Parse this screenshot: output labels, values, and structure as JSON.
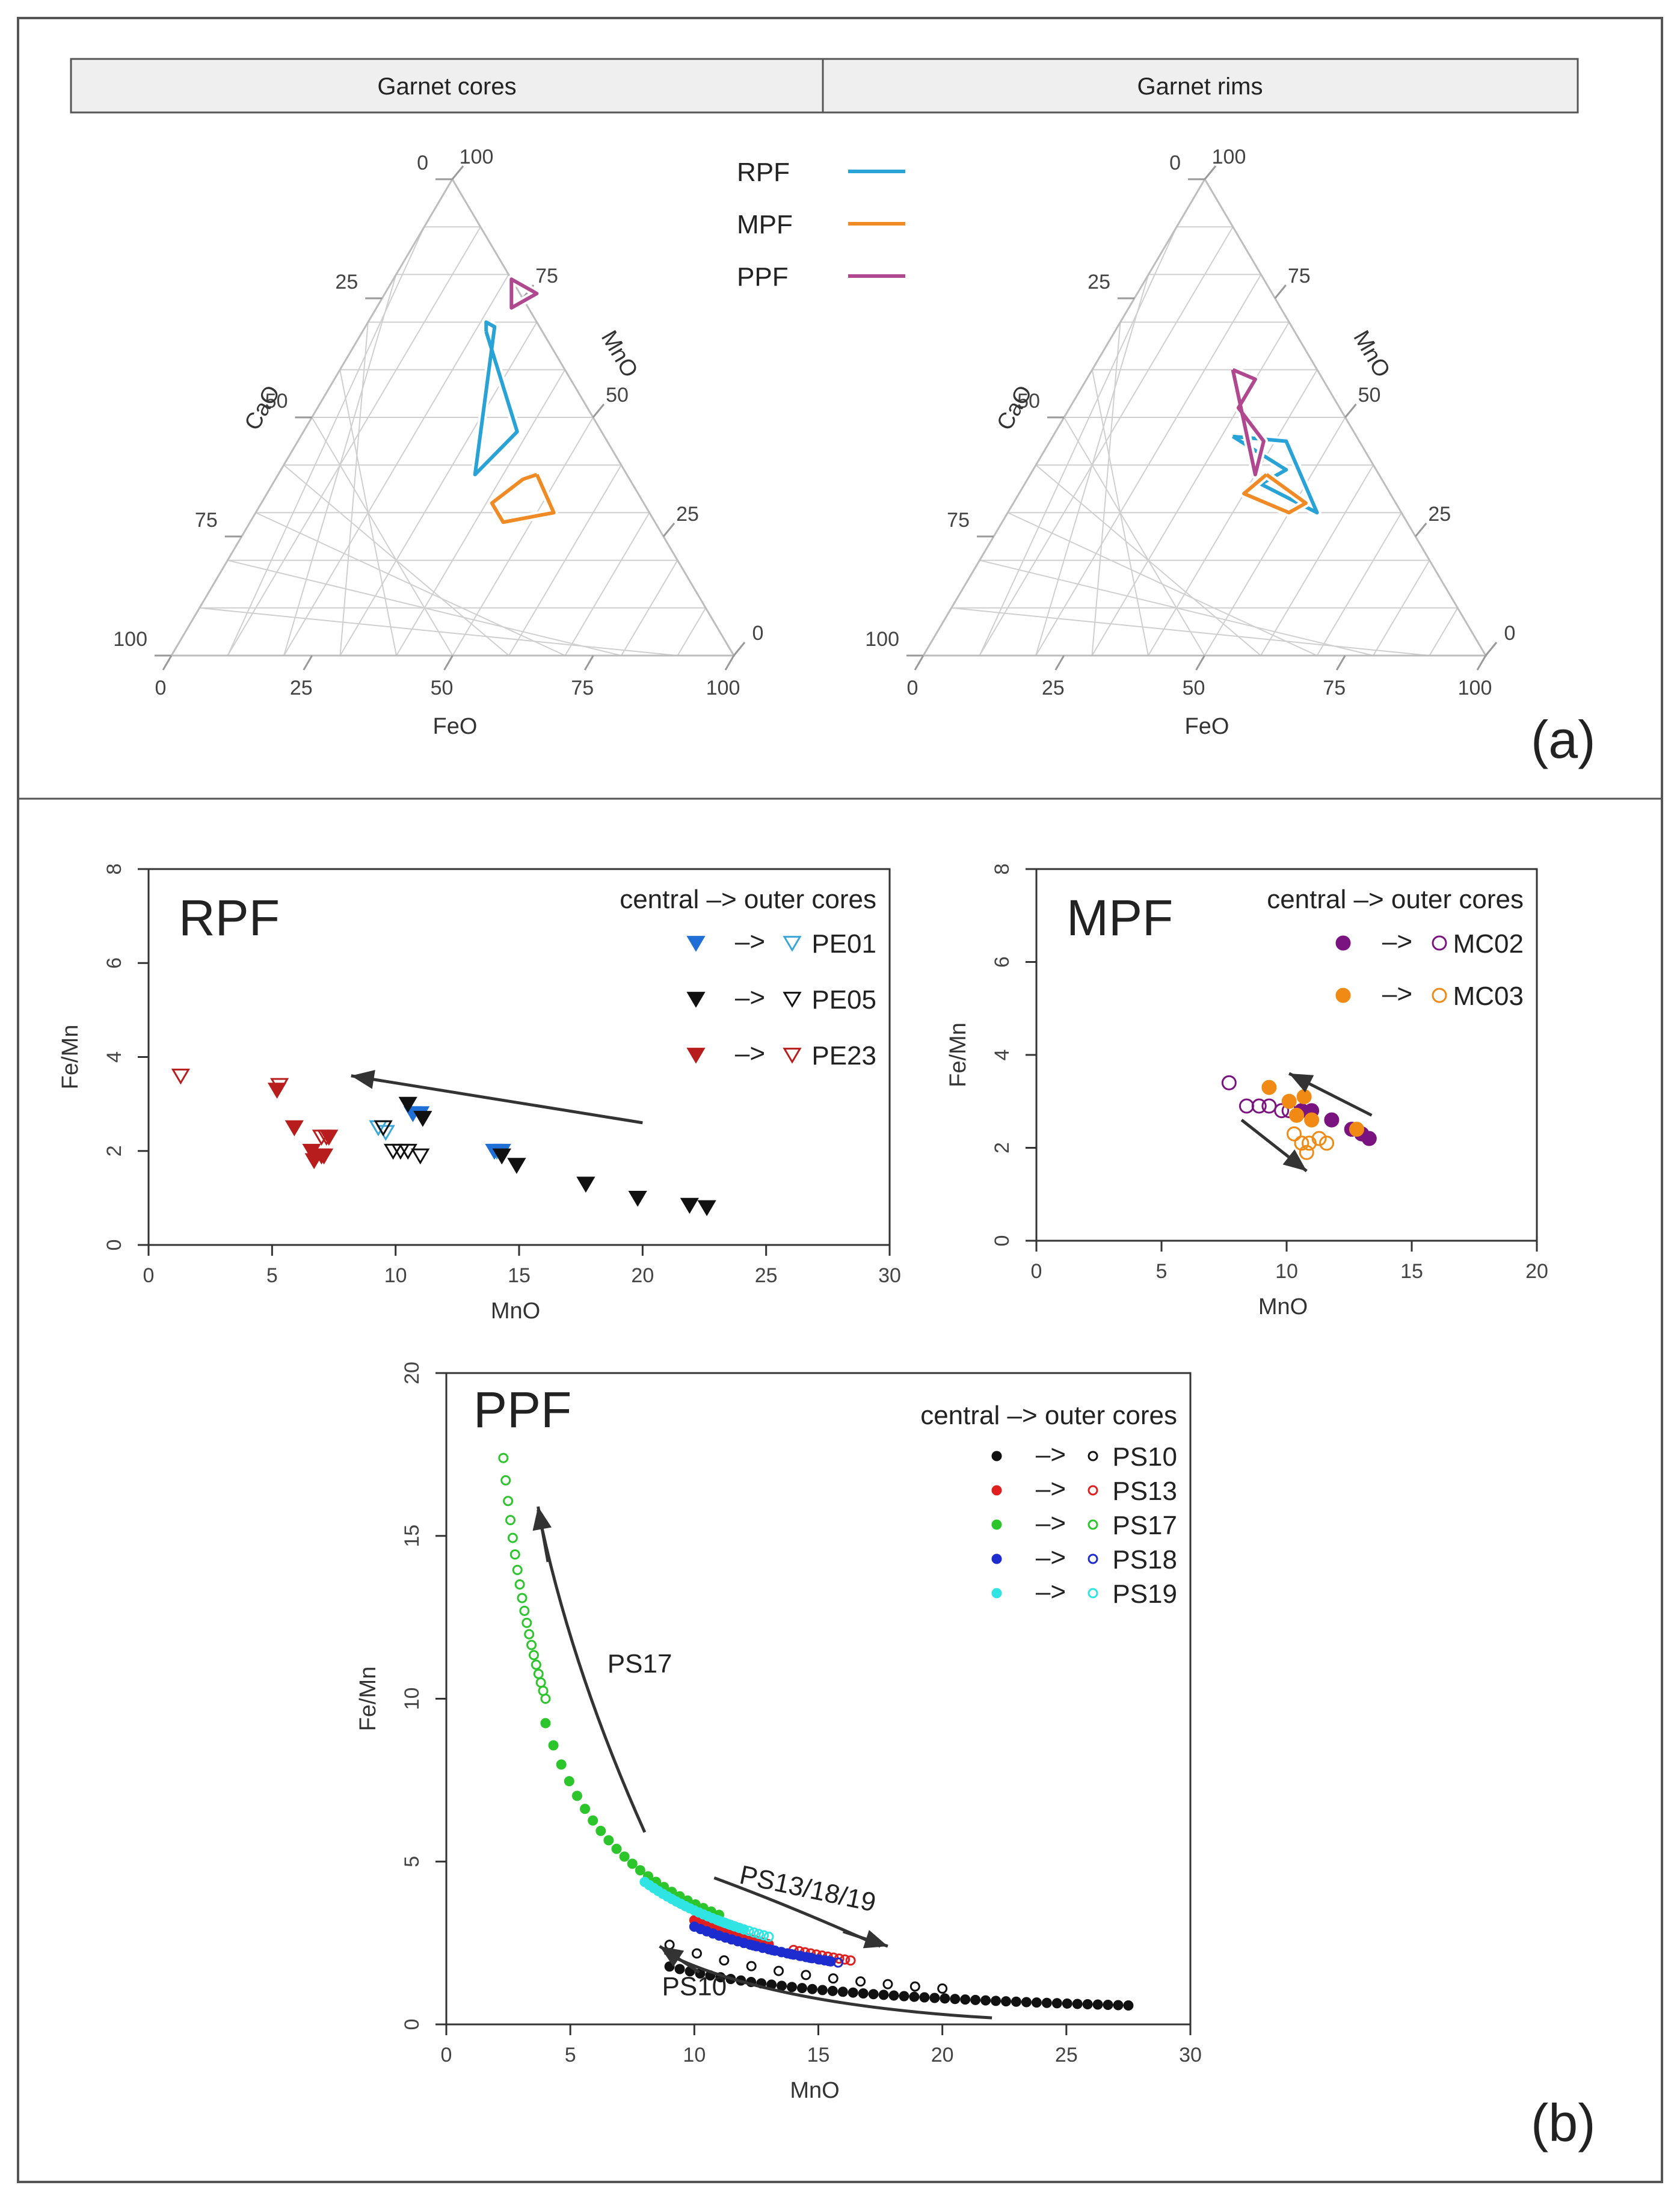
{
  "colors": {
    "RPF": "#29a3d6",
    "MPF": "#f08a24",
    "PPF": "#b0488f",
    "PE01": "#1f6fd6",
    "PE01_open": "#3aa7d8",
    "PE05": "#111111",
    "PE23": "#b81d1d",
    "MC02": "#7a1380",
    "MC03": "#f08a14",
    "PS10": "#111111",
    "PS13": "#e02020",
    "PS17": "#2cc52c",
    "PS18": "#1c2ccf",
    "PS19": "#30e4e4"
  },
  "panel_a": {
    "header_left": "Garnet cores",
    "header_right": "Garnet rims",
    "label": "(a)",
    "legend": [
      {
        "name": "RPF",
        "color_key": "RPF"
      },
      {
        "name": "MPF",
        "color_key": "MPF"
      },
      {
        "name": "PPF",
        "color_key": "PPF"
      }
    ]
  },
  "panel_b": {
    "label": "(b)"
  },
  "chart_data": [
    {
      "type": "ternary",
      "title": "Garnet cores",
      "axes": {
        "bottom": "FeO",
        "left": "CaO",
        "right": "MnO"
      },
      "bottom_ticks": [
        "0",
        "25",
        "50",
        "75",
        "100"
      ],
      "left_ticks": [
        "0",
        "25",
        "50",
        "75",
        "100"
      ],
      "right_ticks": [
        "100",
        "75",
        "50",
        "25",
        "0"
      ],
      "series": [
        {
          "name": "RPF",
          "outline_points": [
            [
              22,
              68
            ],
            [
              38,
              47
            ],
            [
              35,
              38
            ],
            [
              23,
              69
            ],
            [
              21,
              70
            ],
            [
              22,
              68
            ]
          ]
        },
        {
          "name": "MPF",
          "outline_points": [
            [
              46,
              38
            ],
            [
              53,
              30
            ],
            [
              45,
              28
            ],
            [
              41,
              32
            ],
            [
              44,
              37
            ],
            [
              46,
              38
            ]
          ]
        },
        {
          "name": "PPF",
          "outline_points": [
            [
              25,
              74
            ],
            [
              27,
              76
            ],
            [
              21,
              79
            ],
            [
              24,
              73
            ],
            [
              25,
              74
            ]
          ]
        }
      ]
    },
    {
      "type": "ternary",
      "title": "Garnet rims",
      "axes": {
        "bottom": "FeO",
        "left": "CaO",
        "right": "MnO"
      },
      "bottom_ticks": [
        "0",
        "25",
        "50",
        "75",
        "100"
      ],
      "left_ticks": [
        "0",
        "25",
        "50",
        "75",
        "100"
      ],
      "right_ticks": [
        "100",
        "75",
        "50",
        "25",
        "0"
      ],
      "series": [
        {
          "name": "RPF",
          "outline_points": [
            [
              32,
              46
            ],
            [
              45,
              39
            ],
            [
              42,
              36
            ],
            [
              55,
              30
            ],
            [
              42,
              45
            ],
            [
              32,
              46
            ]
          ]
        },
        {
          "name": "MPF",
          "outline_points": [
            [
              42,
              38
            ],
            [
              52,
              32
            ],
            [
              50,
              30
            ],
            [
              40,
              34
            ],
            [
              42,
              38
            ]
          ]
        },
        {
          "name": "PPF",
          "outline_points": [
            [
              25,
              60
            ],
            [
              30,
              58
            ],
            [
              30,
              52
            ],
            [
              38,
              45
            ],
            [
              40,
              38
            ],
            [
              25,
              60
            ]
          ]
        }
      ]
    },
    {
      "type": "scatter",
      "title": "RPF",
      "xlabel": "MnO",
      "ylabel": "Fe/Mn",
      "xlim": [
        0,
        30
      ],
      "ylim": [
        0,
        8
      ],
      "xticks": [
        "0",
        "5",
        "10",
        "15",
        "20",
        "25",
        "30"
      ],
      "yticks": [
        "0",
        "2",
        "4",
        "6",
        "8"
      ],
      "legend_title": "central → outer cores",
      "legend_title_text": "central –> outer cores",
      "arrow_text": "–>",
      "series": [
        {
          "name": "PE01",
          "color_key": "PE01",
          "open_color_key": "PE01_open",
          "central": [
            [
              10.7,
              2.8
            ],
            [
              11,
              2.8
            ],
            [
              14,
              2.0
            ],
            [
              14.3,
              2.0
            ]
          ],
          "outer": [
            [
              9.3,
              2.5
            ],
            [
              9.6,
              2.4
            ],
            [
              14.1,
              2.0
            ]
          ]
        },
        {
          "name": "PE05",
          "color_key": "PE05",
          "open_color_key": "PE05",
          "central": [
            [
              10.5,
              3.0
            ],
            [
              11.1,
              2.7
            ],
            [
              14.3,
              1.9
            ],
            [
              14.9,
              1.7
            ],
            [
              17.7,
              1.3
            ],
            [
              19.8,
              1.0
            ],
            [
              21.9,
              0.85
            ],
            [
              22.6,
              0.8
            ]
          ],
          "outer": [
            [
              9.9,
              2.0
            ],
            [
              10.2,
              2.0
            ],
            [
              10.5,
              2.0
            ],
            [
              11.0,
              1.9
            ],
            [
              9.5,
              2.5
            ]
          ]
        },
        {
          "name": "PE23",
          "color_key": "PE23",
          "open_color_key": "PE23",
          "central": [
            [
              5.2,
              3.3
            ],
            [
              5.9,
              2.5
            ],
            [
              6.6,
              2.0
            ],
            [
              6.8,
              1.9
            ],
            [
              7.0,
              1.9
            ],
            [
              7.1,
              1.9
            ],
            [
              7.3,
              2.3
            ],
            [
              6.7,
              1.8
            ]
          ],
          "outer": [
            [
              1.3,
              3.6
            ],
            [
              5.3,
              3.4
            ],
            [
              7.0,
              2.3
            ],
            [
              7.2,
              2.3
            ]
          ]
        }
      ],
      "arrow": {
        "from": [
          20,
          2.6
        ],
        "to": [
          8.2,
          3.6
        ]
      }
    },
    {
      "type": "scatter",
      "title": "MPF",
      "xlabel": "MnO",
      "ylabel": "Fe/Mn",
      "xlim": [
        0,
        20
      ],
      "ylim": [
        0,
        8
      ],
      "xticks": [
        "0",
        "5",
        "10",
        "15",
        "20"
      ],
      "yticks": [
        "0",
        "2",
        "4",
        "6",
        "8"
      ],
      "legend_title": "central → outer cores",
      "legend_title_text": "central –> outer cores",
      "arrow_text": "–>",
      "series": [
        {
          "name": "MC02",
          "color_key": "MC02",
          "open_color_key": "MC02",
          "central": [
            [
              10.6,
              2.8
            ],
            [
              11.0,
              2.8
            ],
            [
              11.8,
              2.6
            ],
            [
              12.6,
              2.4
            ],
            [
              13.0,
              2.3
            ],
            [
              13.3,
              2.2
            ]
          ],
          "outer": [
            [
              7.7,
              3.4
            ],
            [
              8.4,
              2.9
            ],
            [
              8.9,
              2.9
            ],
            [
              9.3,
              2.9
            ],
            [
              9.8,
              2.8
            ],
            [
              10.1,
              2.8
            ]
          ]
        },
        {
          "name": "MC03",
          "color_key": "MC03",
          "open_color_key": "MC03",
          "central": [
            [
              9.3,
              3.3
            ],
            [
              10.1,
              3.0
            ],
            [
              10.4,
              2.7
            ],
            [
              11.0,
              2.6
            ],
            [
              10.7,
              3.1
            ],
            [
              12.8,
              2.4
            ]
          ],
          "outer": [
            [
              10.3,
              2.3
            ],
            [
              10.6,
              2.1
            ],
            [
              10.9,
              2.1
            ],
            [
              11.3,
              2.2
            ],
            [
              11.6,
              2.1
            ],
            [
              10.8,
              1.9
            ]
          ]
        }
      ],
      "arrows": [
        {
          "from": [
            13.4,
            2.7
          ],
          "to": [
            10.1,
            3.6
          ]
        },
        {
          "from": [
            8.2,
            2.6
          ],
          "to": [
            10.8,
            1.5
          ]
        }
      ]
    },
    {
      "type": "scatter",
      "title": "PPF",
      "xlabel": "MnO",
      "ylabel": "Fe/Mn",
      "xlim": [
        0,
        30
      ],
      "ylim": [
        0,
        20
      ],
      "xticks": [
        "0",
        "5",
        "10",
        "15",
        "20",
        "25",
        "30"
      ],
      "yticks": [
        "0",
        "5",
        "10",
        "15",
        "20"
      ],
      "legend_title": "central → outer cores",
      "legend_title_text": "central –> outer cores",
      "arrow_text": "–>",
      "series": [
        {
          "name": "PS10",
          "color_key": "PS10",
          "open_color_key": "PS10",
          "curve": "central_low_outer_mixed",
          "central_range": [
            9,
            27.5
          ],
          "outer_range": [
            9,
            20
          ]
        },
        {
          "name": "PS13",
          "color_key": "PS13",
          "open_color_key": "PS13",
          "central_range": [
            10,
            13
          ],
          "outer_range": [
            14,
            16.3
          ]
        },
        {
          "name": "PS17",
          "color_key": "PS17",
          "open_color_key": "PS17",
          "central_range": [
            4,
            11
          ],
          "outer_range": [
            2.3,
            4
          ]
        },
        {
          "name": "PS18",
          "color_key": "PS18",
          "open_color_key": "PS18",
          "central_range": [
            10,
            15.5
          ],
          "outer_range": [
            12,
            15.8
          ]
        },
        {
          "name": "PS19",
          "color_key": "PS19",
          "open_color_key": "PS19",
          "central_range": [
            8,
            12
          ],
          "outer_range": [
            11,
            13
          ]
        }
      ],
      "annotations": [
        "PS17",
        "PS13/18/19",
        "PS10"
      ]
    }
  ]
}
